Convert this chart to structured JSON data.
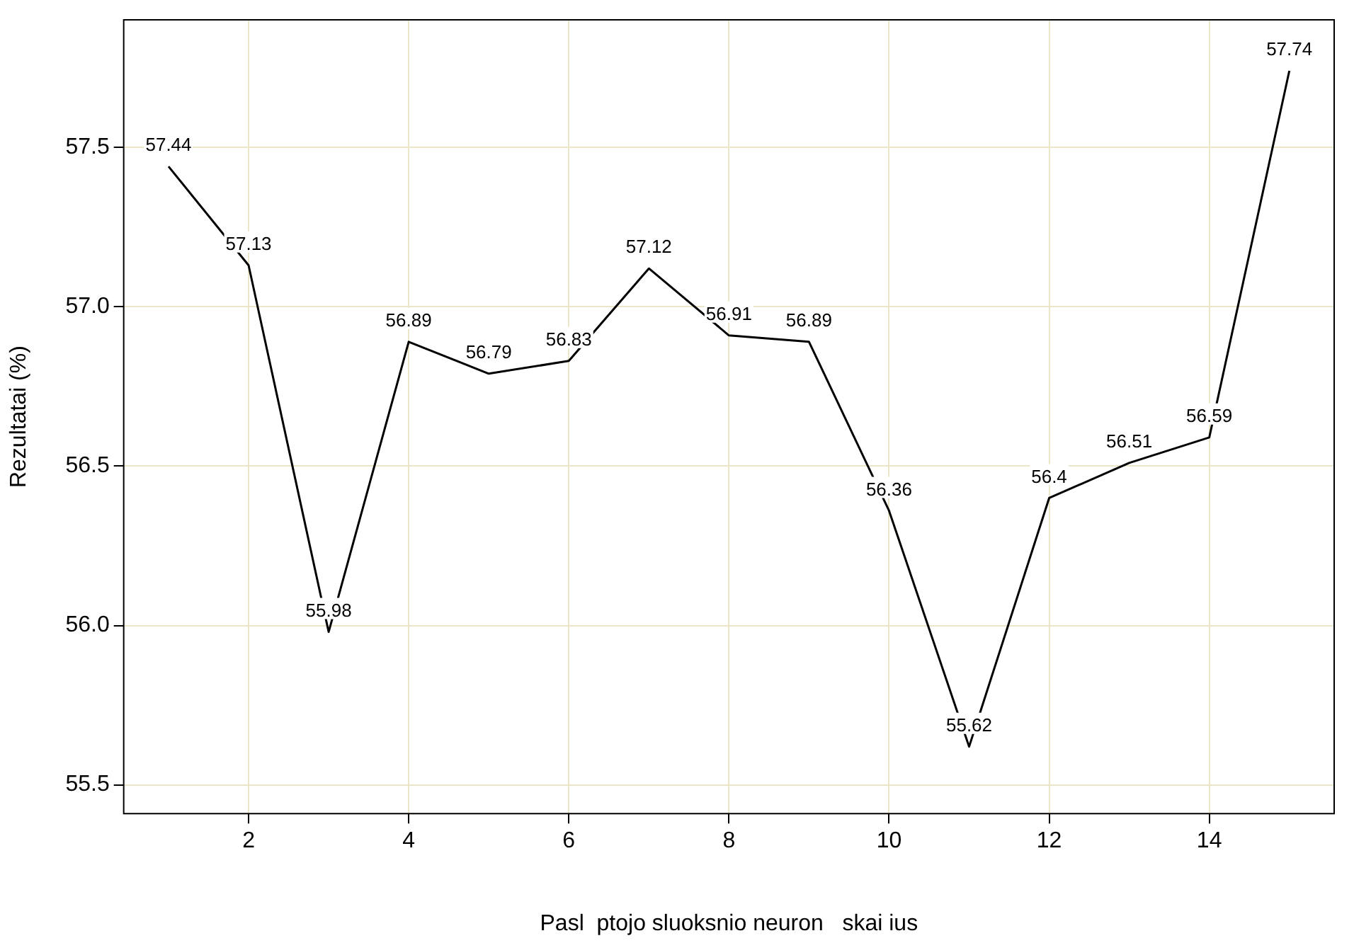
{
  "chart_data": {
    "type": "line",
    "xlabel": "Pasl  ptojo sluoksnio neuron   skai ius",
    "ylabel": "Rezultatai (%)",
    "x": [
      1,
      2,
      3,
      4,
      5,
      6,
      7,
      8,
      9,
      10,
      11,
      12,
      13,
      14,
      15
    ],
    "series": [
      {
        "color": "#000000",
        "values": [
          57.44,
          57.13,
          55.98,
          56.89,
          56.79,
          56.83,
          57.12,
          56.91,
          56.89,
          56.36,
          55.62,
          56.4,
          56.51,
          56.59,
          57.74
        ]
      }
    ],
    "xlim": [
      0.44,
      15.56
    ],
    "ylim": [
      55.41,
      57.9
    ],
    "xticks": [
      2,
      4,
      6,
      8,
      10,
      12,
      14
    ],
    "yticks": [
      55.5,
      {
        "value": 56,
        "label": "56.0"
      },
      56.5,
      {
        "value": 57,
        "label": "57.0"
      },
      57.5
    ],
    "grid": true,
    "legend": false,
    "marker": "none",
    "line_style": "solid",
    "data_labels": true
  }
}
